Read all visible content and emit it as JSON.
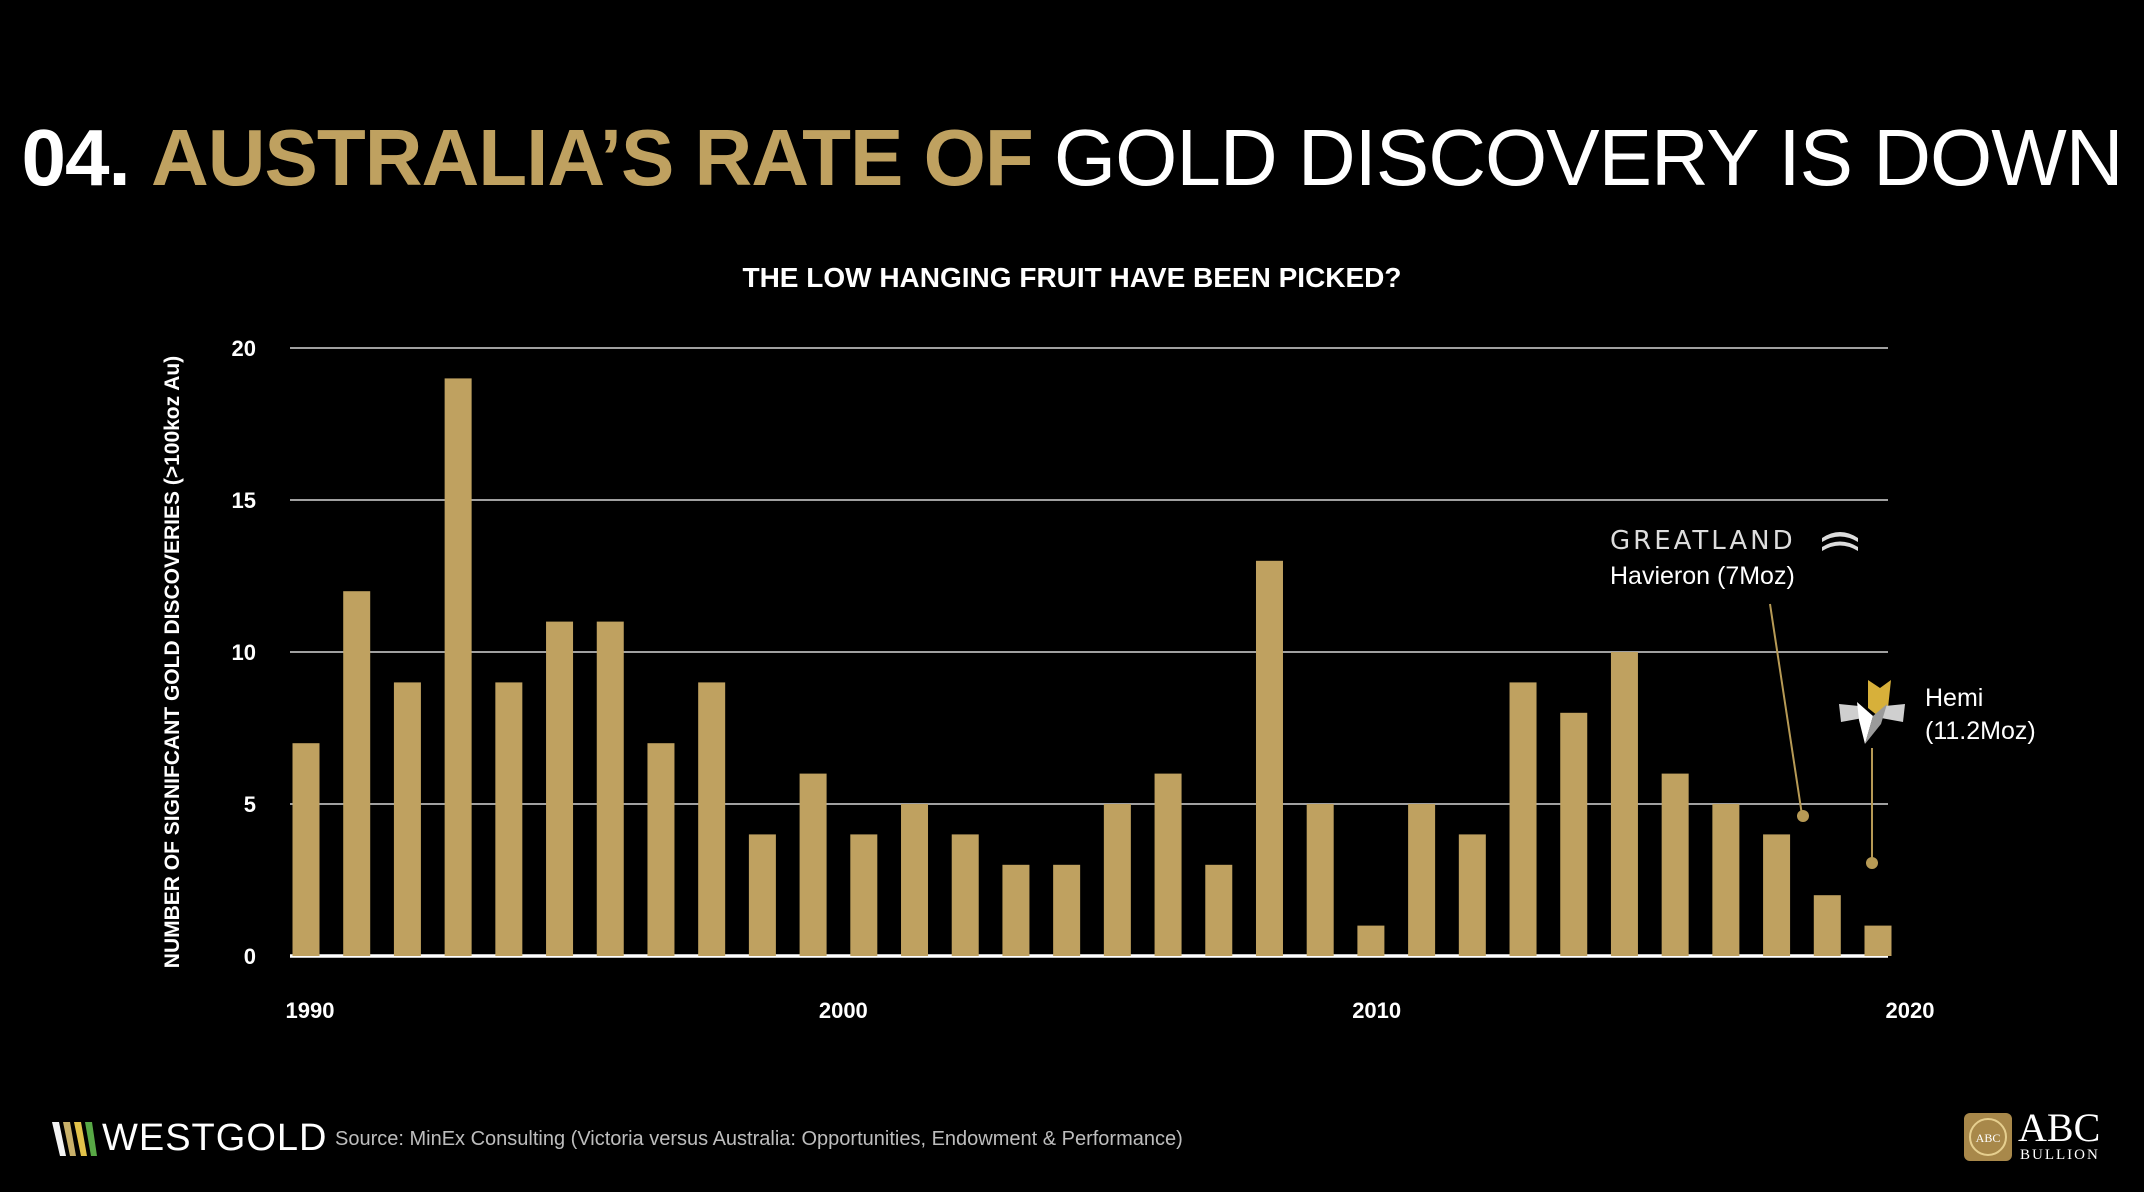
{
  "title": {
    "number": "04.",
    "highlight": "AUSTRALIA’S RATE OF",
    "rest": "GOLD DISCOVERY IS DOWN"
  },
  "colors": {
    "bar": "#bfa160",
    "background": "#000000",
    "grid": "#ffffff",
    "accent_gold": "#bfa160"
  },
  "chart_data": {
    "type": "bar",
    "title": "THE LOW HANGING FRUIT HAVE BEEN PICKED?",
    "ylabel": "NUMBER OF SIGNIFCANT GOLD DISCOVERIES (>100koz Au)",
    "xlabel": "",
    "ylim": [
      0,
      20
    ],
    "xlim": [
      1990,
      2020
    ],
    "yticks": [
      0,
      5,
      10,
      15,
      20
    ],
    "xticks": [
      1990,
      2000,
      2010,
      2020
    ],
    "grid": true,
    "categories": [
      1990,
      1991,
      1992,
      1993,
      1994,
      1995,
      1996,
      1997,
      1998,
      1999,
      2000,
      2001,
      2002,
      2003,
      2004,
      2005,
      2006,
      2007,
      2008,
      2009,
      2010,
      2011,
      2012,
      2013,
      2014,
      2015,
      2016,
      2017,
      2018,
      2019,
      2020,
      2021
    ],
    "values": [
      7,
      12,
      9,
      19,
      9,
      11,
      11,
      7,
      9,
      4,
      6,
      4,
      5,
      4,
      3,
      3,
      5,
      6,
      3,
      13,
      5,
      1,
      5,
      4,
      9,
      8,
      10,
      6,
      5,
      4,
      2,
      1
    ],
    "annotations": [
      {
        "company": "GREATLAND",
        "label": "Havieron (7Moz)"
      },
      {
        "company": "",
        "label": "Hemi (11.2Moz)",
        "line1": "Hemi",
        "line2": "(11.2Moz)"
      }
    ]
  },
  "footer": {
    "left_logo": "WESTGOLD",
    "source": "Source: MinEx Consulting (Victoria versus Australia: Opportunities, Endowment & Performance)",
    "right_logo": "ABC",
    "right_logo_sub": "BULLION",
    "right_logo_seal": "ABC"
  }
}
